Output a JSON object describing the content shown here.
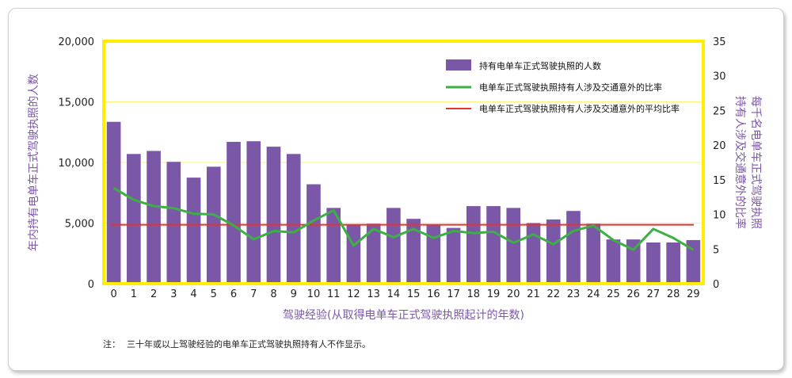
{
  "chart_data": {
    "type": "bar+line",
    "categories": [
      "0",
      "1",
      "2",
      "3",
      "4",
      "5",
      "6",
      "7",
      "8",
      "9",
      "10",
      "11",
      "12",
      "13",
      "14",
      "15",
      "16",
      "17",
      "18",
      "19",
      "20",
      "21",
      "22",
      "23",
      "24",
      "25",
      "26",
      "27",
      "28",
      "29"
    ],
    "bar_series": {
      "name": "持有电单车正式驾驶执照的人数",
      "color": "#7b57a8",
      "values": [
        13350,
        10700,
        10950,
        10050,
        8750,
        9650,
        11700,
        11750,
        11300,
        10700,
        8200,
        6250,
        4900,
        4950,
        6250,
        5350,
        4850,
        4600,
        6400,
        6400,
        6250,
        5000,
        5300,
        6000,
        4950,
        3650,
        3650,
        3400,
        3400,
        3600
      ]
    },
    "line_series": {
      "name": "电单车正式驾驶执照持有人涉及交通意外的比率",
      "color": "#3cb043",
      "values": [
        13.8,
        12.1,
        11.2,
        10.9,
        10.1,
        10.0,
        8.4,
        6.4,
        7.6,
        7.4,
        9.1,
        10.6,
        5.5,
        7.9,
        6.7,
        7.9,
        6.6,
        7.6,
        7.3,
        7.5,
        5.9,
        7.1,
        5.7,
        7.6,
        8.4,
        6.3,
        4.9,
        7.9,
        6.6,
        4.9
      ]
    },
    "avg_series": {
      "name": "电单车正式驾驶执照持有人涉及交通意外的平均比率",
      "color": "#e0352b",
      "value": 8.5
    },
    "y_left": {
      "label": "年内持有电单车正式驾驶执照的人数",
      "range": [
        0,
        20000
      ],
      "ticks": [
        "0",
        "5,000",
        "10,000",
        "15,000",
        "20,000"
      ],
      "tick_values": [
        0,
        5000,
        10000,
        15000,
        20000
      ]
    },
    "y_right": {
      "label_lines": [
        "每千名电单车正式驾驶执照",
        "持有人涉及交通意外的比率"
      ],
      "range": [
        0,
        35
      ],
      "ticks": [
        "0",
        "5",
        "10",
        "15",
        "20",
        "25",
        "30",
        "35"
      ],
      "tick_values": [
        0,
        5,
        10,
        15,
        20,
        25,
        30,
        35
      ]
    },
    "xlabel": "驾驶经验(从取得电单车正式驾驶执照起计的年数)",
    "legend_placement": "top-right",
    "grid": true,
    "frame_color": "#ffee00",
    "grid_color": "#fff27a",
    "axis_label_color": "#7b57a8"
  },
  "note": {
    "prefix": "注：",
    "text": "三十年或以上驾驶经验的电单车正式驾驶执照持有人不作显示。"
  }
}
